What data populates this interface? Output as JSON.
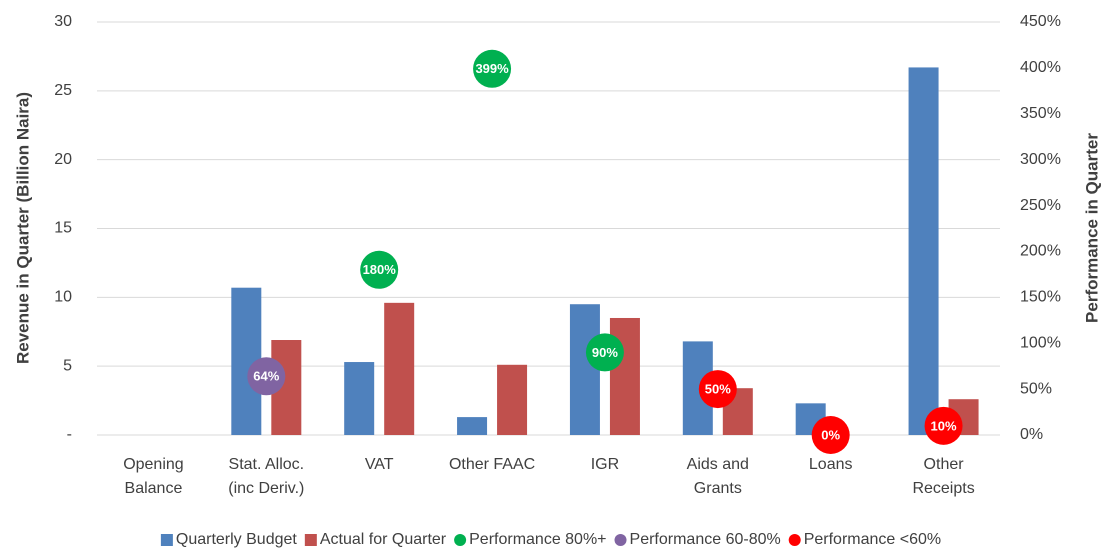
{
  "chart_data": {
    "type": "bar",
    "categories": [
      [
        "Opening",
        "Balance"
      ],
      [
        "Stat. Alloc.",
        "(inc Deriv.)"
      ],
      [
        "VAT"
      ],
      [
        "Other FAAC"
      ],
      [
        "IGR"
      ],
      [
        "Aids and",
        "Grants"
      ],
      [
        "Loans"
      ],
      [
        "Other",
        "Receipts"
      ]
    ],
    "ylabel": "Revenue in Quarter (Billion Naira)",
    "y2label": "Performance in Quarter",
    "ylim": [
      0,
      30
    ],
    "yticks": [
      {
        "value": 0,
        "label": "-"
      },
      5,
      10,
      15,
      20,
      25,
      30
    ],
    "y2lim": [
      0,
      450
    ],
    "y2ticks": [
      {
        "value": 0,
        "label": "0%"
      },
      {
        "value": 50,
        "label": "50%"
      },
      {
        "value": 100,
        "label": "100%"
      },
      {
        "value": 150,
        "label": "150%"
      },
      {
        "value": 200,
        "label": "200%"
      },
      {
        "value": 250,
        "label": "250%"
      },
      {
        "value": 300,
        "label": "300%"
      },
      {
        "value": 350,
        "label": "350%"
      },
      {
        "value": 400,
        "label": "400%"
      },
      {
        "value": 450,
        "label": "450%"
      }
    ],
    "grid": true,
    "legend": "bottom",
    "series": [
      {
        "name": "Quarterly Budget",
        "color": "#4f81bd",
        "values": [
          null,
          10.7,
          5.3,
          1.3,
          9.5,
          6.8,
          2.3,
          26.7
        ]
      },
      {
        "name": "Actual for Quarter",
        "color": "#c0504d",
        "values": [
          null,
          6.9,
          9.6,
          5.1,
          8.5,
          3.4,
          null,
          2.6
        ]
      },
      {
        "name": "Performance 80%+",
        "color": "#00b050",
        "axis": "y2",
        "marker": "circle",
        "values": [
          null,
          null,
          180,
          399,
          90,
          null,
          null,
          null
        ],
        "value_labels": [
          null,
          null,
          "180%",
          "399%",
          "90%",
          null,
          null,
          null
        ]
      },
      {
        "name": "Performance 60-80%",
        "color": "#8064a2",
        "axis": "y2",
        "marker": "circle",
        "values": [
          null,
          64,
          null,
          null,
          null,
          null,
          null,
          null
        ],
        "value_labels": [
          null,
          "64%",
          null,
          null,
          null,
          null,
          null,
          null
        ]
      },
      {
        "name": "Performance <60%",
        "color": "#ff0000",
        "axis": "y2",
        "marker": "circle",
        "values": [
          null,
          null,
          null,
          null,
          null,
          50,
          0,
          10
        ],
        "value_labels": [
          null,
          null,
          null,
          null,
          null,
          "50%",
          "0%",
          "10%"
        ]
      }
    ]
  }
}
